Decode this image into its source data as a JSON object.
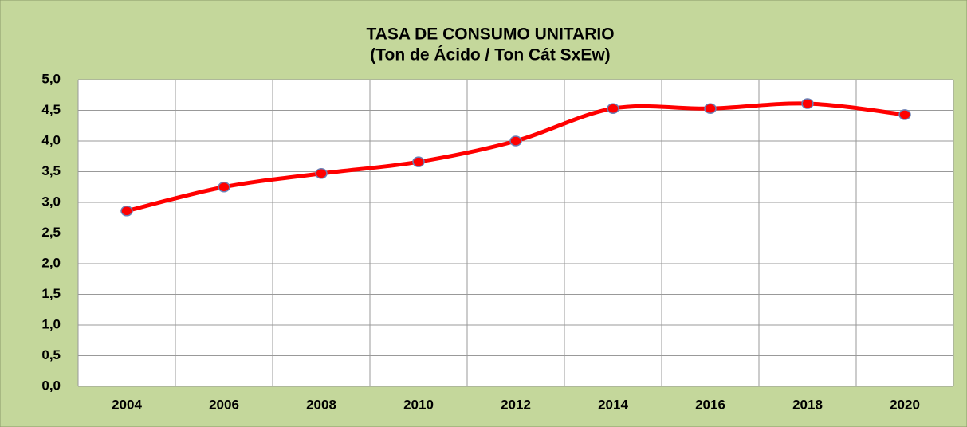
{
  "chart_data": {
    "type": "line",
    "title": "TASA DE CONSUMO UNITARIO",
    "subtitle": "(Ton de Ácido / Ton Cát SxEw)",
    "categories": [
      "2004",
      "2006",
      "2008",
      "2010",
      "2012",
      "2014",
      "2016",
      "2018",
      "2020"
    ],
    "series": [
      {
        "name": "Tasa de consumo unitario",
        "color": "#ff0000",
        "values": [
          2.86,
          3.25,
          3.47,
          3.66,
          4.0,
          4.53,
          4.53,
          4.61,
          4.43
        ]
      }
    ],
    "ylim": [
      0,
      5
    ],
    "yticks": [
      {
        "value": 0,
        "label": "0,0"
      },
      {
        "value": 0.5,
        "label": "0,5"
      },
      {
        "value": 1,
        "label": "1,0"
      },
      {
        "value": 1.5,
        "label": "1,5"
      },
      {
        "value": 2,
        "label": "2,0"
      },
      {
        "value": 2.5,
        "label": "2,5"
      },
      {
        "value": 3,
        "label": "3,0"
      },
      {
        "value": 3.5,
        "label": "3,5"
      },
      {
        "value": 4,
        "label": "4,0"
      },
      {
        "value": 4.5,
        "label": "4,5"
      },
      {
        "value": 5,
        "label": "5,0"
      }
    ],
    "grid": true
  }
}
